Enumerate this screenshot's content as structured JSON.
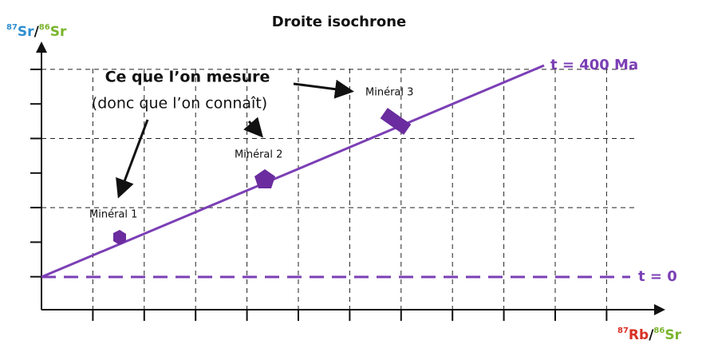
{
  "title": "Droite isochrone",
  "y_axis": {
    "mass1": "87",
    "element1": "Sr",
    "separator": "/",
    "mass2": "86",
    "element2": "Sr"
  },
  "x_axis": {
    "mass1": "87",
    "element1": "Rb",
    "separator": "/",
    "mass2": "86",
    "element2": "Sr"
  },
  "lines": {
    "isochrone": "t = 400 Ma",
    "initial": "t = 0"
  },
  "annotation": {
    "line1": "Ce que l’on mesure",
    "line2": "(donc que l’on connaît)"
  },
  "minerals": [
    "Minéral 1",
    "Minéral 2",
    "Minéral 3"
  ]
}
